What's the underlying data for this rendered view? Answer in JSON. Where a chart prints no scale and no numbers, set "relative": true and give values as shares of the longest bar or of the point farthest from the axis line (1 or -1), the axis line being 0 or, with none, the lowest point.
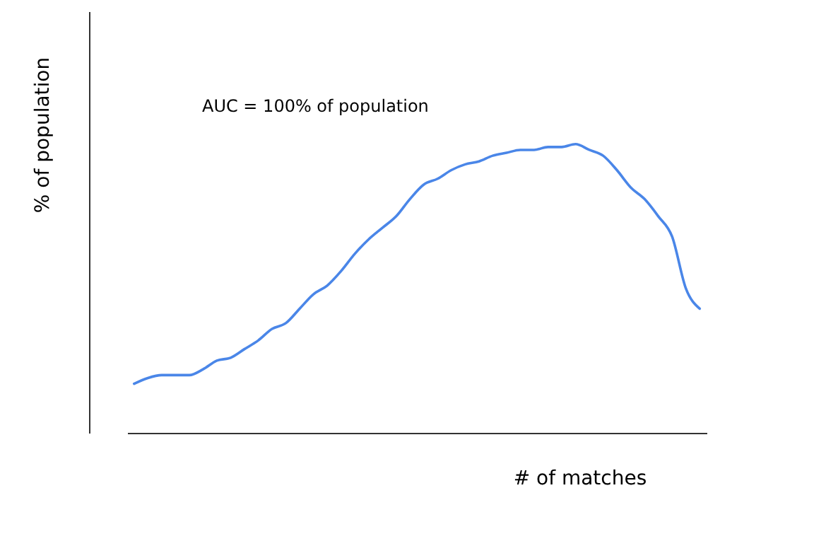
{
  "chart_data": {
    "type": "line",
    "relative": true,
    "xlabel": "# of matches",
    "ylabel": "% of population",
    "annotations": [
      "AUC = 100% of population"
    ],
    "categories": [
      null,
      null,
      null,
      null,
      null,
      null,
      null,
      null,
      null,
      null,
      null,
      null,
      null,
      null,
      null,
      null,
      null,
      null,
      null,
      null,
      null,
      null,
      null,
      null,
      null,
      null,
      null,
      null,
      null,
      null,
      null,
      null,
      null,
      null,
      null,
      null,
      null,
      null,
      null,
      null,
      null,
      null
    ],
    "series": [
      {
        "color": "#4a86e8",
        "values": [
          0.17,
          0.19,
          0.2,
          0.2,
          0.2,
          0.22,
          0.25,
          0.26,
          0.29,
          0.32,
          0.36,
          0.38,
          0.43,
          0.48,
          0.51,
          0.56,
          0.62,
          0.67,
          0.71,
          0.75,
          0.81,
          0.86,
          0.88,
          0.91,
          0.93,
          0.94,
          0.96,
          0.97,
          0.98,
          0.98,
          0.99,
          0.99,
          1,
          0.98,
          0.96,
          0.91,
          0.85,
          0.81,
          0.75,
          0.68,
          0.5,
          0.43
        ]
      }
    ],
    "grid": false
  }
}
